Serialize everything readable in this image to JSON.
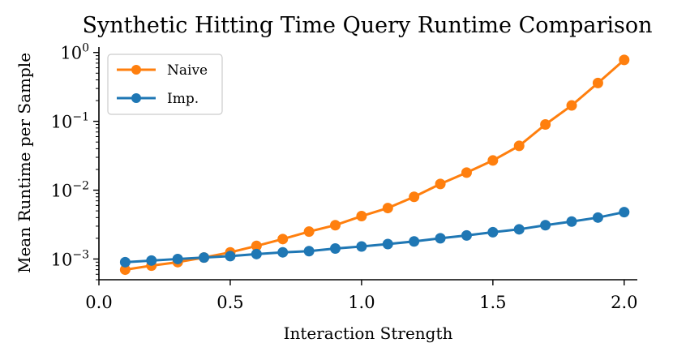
{
  "chart_data": {
    "type": "line",
    "title": "Synthetic Hitting Time Query Runtime Comparison",
    "xlabel": "Interaction Strength",
    "ylabel": "Mean Runtime per Sample",
    "yscale": "log",
    "xlim": [
      0.0,
      2.05
    ],
    "ylim": [
      0.0005,
      1.2
    ],
    "x_ticks": [
      0.0,
      0.5,
      1.0,
      1.5,
      2.0
    ],
    "x_tick_labels": [
      "0.0",
      "0.5",
      "1.0",
      "1.5",
      "2.0"
    ],
    "y_ticks": [
      0.001,
      0.01,
      0.1,
      1
    ],
    "y_tick_labels": [
      {
        "base": "10",
        "exp": "−3"
      },
      {
        "base": "10",
        "exp": "−2"
      },
      {
        "base": "10",
        "exp": "−1"
      },
      {
        "base": "10",
        "exp": "0"
      }
    ],
    "legend_position": "upper-left",
    "grid": false,
    "x": [
      0.1,
      0.2,
      0.3,
      0.4,
      0.5,
      0.6,
      0.7,
      0.8,
      0.9,
      1.0,
      1.1,
      1.2,
      1.3,
      1.4,
      1.5,
      1.6,
      1.7,
      1.8,
      1.9,
      2.0
    ],
    "series": [
      {
        "name": "Naive",
        "color": "#ff7f0e",
        "values": [
          0.0007,
          0.0008,
          0.0009,
          0.00105,
          0.00125,
          0.00155,
          0.00195,
          0.0025,
          0.0031,
          0.0042,
          0.0055,
          0.008,
          0.0123,
          0.018,
          0.027,
          0.044,
          0.09,
          0.17,
          0.36,
          0.78
        ]
      },
      {
        "name": "Imp.",
        "color": "#1f77b4",
        "values": [
          0.0009,
          0.00095,
          0.001,
          0.00105,
          0.0011,
          0.00118,
          0.00125,
          0.0013,
          0.00142,
          0.00152,
          0.00165,
          0.0018,
          0.002,
          0.0022,
          0.00245,
          0.0027,
          0.0031,
          0.0035,
          0.004,
          0.0048
        ]
      }
    ]
  }
}
